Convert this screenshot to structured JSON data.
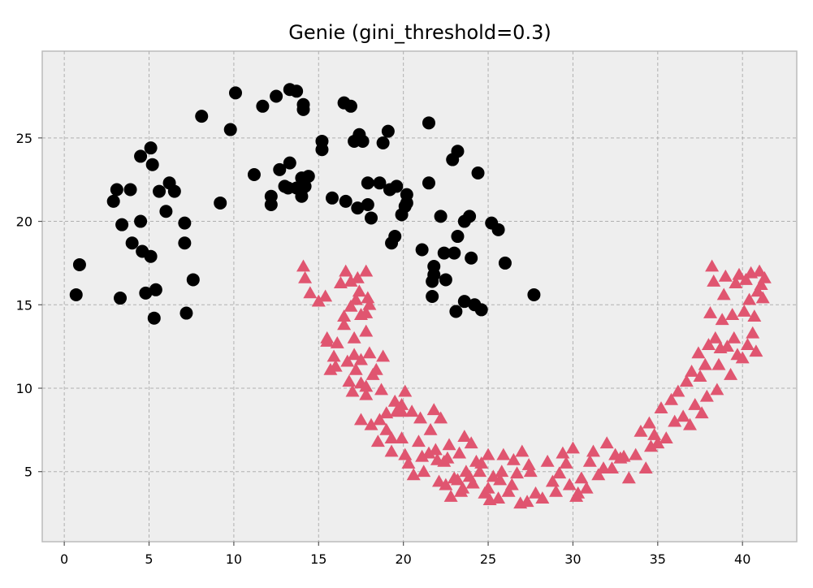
{
  "chart_data": {
    "type": "scatter",
    "title": "Genie (gini_threshold=0.3)",
    "xlabel": "",
    "ylabel": "",
    "xlim": [
      -1.3,
      43.2
    ],
    "ylim": [
      0.8,
      30.2
    ],
    "xticks": [
      0,
      5,
      10,
      15,
      20,
      25,
      30,
      35,
      40
    ],
    "yticks": [
      5,
      10,
      15,
      20,
      25
    ],
    "grid": true,
    "legend": "none",
    "background": "#eeeeee",
    "series": [
      {
        "marker": "circle",
        "color": "#000000",
        "points": [
          [
            0.7,
            15.6
          ],
          [
            0.9,
            17.4
          ],
          [
            2.9,
            21.2
          ],
          [
            3.1,
            21.9
          ],
          [
            3.3,
            15.4
          ],
          [
            3.4,
            19.8
          ],
          [
            3.9,
            21.9
          ],
          [
            4.0,
            18.7
          ],
          [
            4.5,
            23.9
          ],
          [
            4.5,
            20.0
          ],
          [
            4.6,
            18.2
          ],
          [
            4.8,
            15.7
          ],
          [
            5.1,
            24.4
          ],
          [
            5.1,
            17.9
          ],
          [
            5.2,
            23.4
          ],
          [
            5.3,
            14.2
          ],
          [
            5.4,
            15.9
          ],
          [
            5.6,
            21.8
          ],
          [
            6.0,
            20.6
          ],
          [
            6.2,
            22.3
          ],
          [
            6.5,
            21.8
          ],
          [
            7.1,
            19.9
          ],
          [
            7.1,
            18.7
          ],
          [
            7.2,
            14.5
          ],
          [
            7.6,
            16.5
          ],
          [
            8.1,
            26.3
          ],
          [
            9.2,
            21.1
          ],
          [
            9.8,
            25.5
          ],
          [
            10.1,
            27.7
          ],
          [
            11.2,
            22.8
          ],
          [
            11.7,
            26.9
          ],
          [
            12.2,
            21.5
          ],
          [
            12.2,
            21.0
          ],
          [
            12.5,
            27.5
          ],
          [
            12.7,
            23.1
          ],
          [
            13.0,
            22.1
          ],
          [
            13.2,
            22.0
          ],
          [
            13.3,
            23.5
          ],
          [
            13.3,
            27.9
          ],
          [
            13.7,
            27.8
          ],
          [
            13.7,
            22.0
          ],
          [
            14.0,
            22.6
          ],
          [
            14.0,
            21.9
          ],
          [
            14.0,
            21.5
          ],
          [
            14.1,
            27.0
          ],
          [
            14.1,
            26.7
          ],
          [
            14.2,
            22.1
          ],
          [
            14.4,
            22.7
          ],
          [
            15.2,
            24.8
          ],
          [
            15.2,
            24.3
          ],
          [
            15.8,
            21.4
          ],
          [
            16.5,
            27.1
          ],
          [
            16.6,
            21.2
          ],
          [
            16.9,
            26.9
          ],
          [
            17.1,
            24.8
          ],
          [
            17.3,
            20.8
          ],
          [
            17.4,
            25.2
          ],
          [
            17.6,
            24.8
          ],
          [
            17.9,
            22.3
          ],
          [
            17.9,
            21.0
          ],
          [
            18.1,
            20.2
          ],
          [
            18.6,
            22.3
          ],
          [
            18.8,
            24.7
          ],
          [
            19.1,
            25.4
          ],
          [
            19.2,
            21.9
          ],
          [
            19.3,
            18.7
          ],
          [
            19.5,
            19.1
          ],
          [
            19.6,
            22.1
          ],
          [
            19.9,
            20.4
          ],
          [
            20.1,
            20.9
          ],
          [
            20.2,
            21.6
          ],
          [
            20.2,
            21.1
          ],
          [
            21.1,
            18.3
          ],
          [
            21.5,
            22.3
          ],
          [
            21.5,
            25.9
          ],
          [
            21.7,
            15.5
          ],
          [
            21.7,
            16.4
          ],
          [
            21.8,
            17.3
          ],
          [
            21.8,
            16.8
          ],
          [
            22.2,
            20.3
          ],
          [
            22.4,
            18.1
          ],
          [
            22.5,
            16.5
          ],
          [
            22.9,
            23.7
          ],
          [
            23.0,
            18.1
          ],
          [
            23.1,
            14.6
          ],
          [
            23.2,
            24.2
          ],
          [
            23.2,
            19.1
          ],
          [
            23.6,
            15.2
          ],
          [
            23.6,
            20.0
          ],
          [
            23.9,
            20.3
          ],
          [
            24.0,
            17.8
          ],
          [
            24.2,
            15.0
          ],
          [
            24.4,
            22.9
          ],
          [
            24.6,
            14.7
          ],
          [
            25.2,
            19.9
          ],
          [
            25.6,
            19.5
          ],
          [
            26.0,
            17.5
          ],
          [
            27.7,
            15.6
          ]
        ]
      },
      {
        "marker": "triangle",
        "color": "#e05570",
        "points": [
          [
            14.1,
            17.3
          ],
          [
            14.2,
            16.6
          ],
          [
            14.5,
            15.7
          ],
          [
            15.0,
            15.2
          ],
          [
            15.4,
            15.5
          ],
          [
            15.5,
            13.0
          ],
          [
            15.5,
            12.8
          ],
          [
            15.7,
            11.1
          ],
          [
            15.9,
            11.9
          ],
          [
            16.0,
            11.3
          ],
          [
            16.1,
            12.7
          ],
          [
            16.3,
            16.3
          ],
          [
            16.5,
            13.8
          ],
          [
            16.5,
            14.3
          ],
          [
            16.6,
            17.0
          ],
          [
            16.7,
            11.6
          ],
          [
            16.8,
            10.4
          ],
          [
            16.9,
            16.4
          ],
          [
            16.9,
            14.9
          ],
          [
            17.0,
            9.8
          ],
          [
            17.1,
            13.0
          ],
          [
            17.1,
            12.0
          ],
          [
            17.2,
            15.3
          ],
          [
            17.2,
            11.1
          ],
          [
            17.3,
            16.6
          ],
          [
            17.4,
            15.8
          ],
          [
            17.5,
            14.4
          ],
          [
            17.5,
            11.7
          ],
          [
            17.5,
            8.1
          ],
          [
            17.5,
            10.3
          ],
          [
            17.8,
            17.0
          ],
          [
            17.8,
            14.5
          ],
          [
            17.8,
            13.4
          ],
          [
            17.8,
            10.1
          ],
          [
            17.8,
            9.6
          ],
          [
            17.9,
            15.4
          ],
          [
            18.0,
            15.0
          ],
          [
            18.0,
            12.1
          ],
          [
            18.1,
            7.8
          ],
          [
            18.2,
            10.8
          ],
          [
            18.4,
            11.1
          ],
          [
            18.5,
            6.8
          ],
          [
            18.6,
            8.1
          ],
          [
            18.7,
            9.9
          ],
          [
            18.8,
            11.9
          ],
          [
            19.0,
            7.5
          ],
          [
            19.0,
            8.5
          ],
          [
            19.3,
            7.0
          ],
          [
            19.3,
            6.2
          ],
          [
            19.5,
            9.2
          ],
          [
            19.6,
            8.6
          ],
          [
            19.9,
            9.0
          ],
          [
            19.9,
            8.6
          ],
          [
            19.9,
            7.0
          ],
          [
            20.1,
            9.8
          ],
          [
            20.1,
            6.0
          ],
          [
            20.3,
            5.5
          ],
          [
            20.5,
            8.6
          ],
          [
            20.6,
            4.8
          ],
          [
            20.9,
            6.8
          ],
          [
            21.0,
            8.2
          ],
          [
            21.1,
            5.9
          ],
          [
            21.2,
            5.0
          ],
          [
            21.5,
            6.1
          ],
          [
            21.6,
            7.5
          ],
          [
            21.8,
            8.7
          ],
          [
            21.9,
            6.3
          ],
          [
            22.0,
            5.7
          ],
          [
            22.1,
            4.4
          ],
          [
            22.2,
            8.2
          ],
          [
            22.4,
            5.6
          ],
          [
            22.5,
            4.2
          ],
          [
            22.6,
            5.8
          ],
          [
            22.7,
            6.6
          ],
          [
            22.8,
            3.5
          ],
          [
            23.0,
            4.6
          ],
          [
            23.2,
            4.5
          ],
          [
            23.3,
            6.1
          ],
          [
            23.4,
            3.8
          ],
          [
            23.5,
            4.0
          ],
          [
            23.6,
            7.1
          ],
          [
            23.7,
            5.0
          ],
          [
            23.9,
            4.7
          ],
          [
            24.0,
            6.7
          ],
          [
            24.1,
            4.3
          ],
          [
            24.3,
            5.6
          ],
          [
            24.5,
            5.0
          ],
          [
            24.6,
            5.5
          ],
          [
            24.8,
            3.7
          ],
          [
            25.0,
            4.0
          ],
          [
            25.0,
            6.0
          ],
          [
            25.1,
            3.3
          ],
          [
            25.3,
            4.7
          ],
          [
            25.6,
            3.4
          ],
          [
            25.7,
            4.5
          ],
          [
            25.8,
            5.0
          ],
          [
            25.9,
            6.0
          ],
          [
            26.2,
            3.8
          ],
          [
            26.4,
            4.2
          ],
          [
            26.5,
            5.7
          ],
          [
            26.7,
            4.9
          ],
          [
            26.9,
            3.1
          ],
          [
            27.0,
            6.2
          ],
          [
            27.3,
            3.2
          ],
          [
            27.4,
            5.4
          ],
          [
            27.5,
            5.0
          ],
          [
            27.8,
            3.7
          ],
          [
            28.2,
            3.4
          ],
          [
            28.5,
            5.6
          ],
          [
            28.8,
            4.4
          ],
          [
            29.0,
            3.8
          ],
          [
            29.2,
            4.9
          ],
          [
            29.4,
            6.1
          ],
          [
            29.6,
            5.5
          ],
          [
            29.8,
            4.2
          ],
          [
            30.0,
            6.4
          ],
          [
            30.2,
            3.5
          ],
          [
            30.3,
            3.7
          ],
          [
            30.5,
            4.6
          ],
          [
            30.8,
            4.0
          ],
          [
            31.0,
            5.6
          ],
          [
            31.2,
            6.2
          ],
          [
            31.5,
            4.8
          ],
          [
            31.8,
            5.2
          ],
          [
            32.0,
            6.7
          ],
          [
            32.3,
            5.2
          ],
          [
            32.5,
            6.0
          ],
          [
            32.8,
            5.8
          ],
          [
            33.0,
            5.9
          ],
          [
            33.3,
            4.6
          ],
          [
            33.7,
            6.0
          ],
          [
            34.0,
            7.4
          ],
          [
            34.3,
            5.2
          ],
          [
            34.5,
            7.9
          ],
          [
            34.6,
            6.5
          ],
          [
            34.8,
            7.2
          ],
          [
            35.0,
            6.7
          ],
          [
            35.2,
            8.8
          ],
          [
            35.5,
            7.0
          ],
          [
            35.8,
            9.3
          ],
          [
            36.0,
            8.0
          ],
          [
            36.2,
            9.8
          ],
          [
            36.5,
            8.3
          ],
          [
            36.7,
            10.4
          ],
          [
            36.9,
            7.8
          ],
          [
            37.0,
            11.0
          ],
          [
            37.2,
            9.0
          ],
          [
            37.4,
            12.1
          ],
          [
            37.5,
            10.7
          ],
          [
            37.6,
            8.5
          ],
          [
            37.8,
            11.4
          ],
          [
            37.9,
            9.5
          ],
          [
            38.0,
            12.6
          ],
          [
            38.1,
            14.5
          ],
          [
            38.2,
            17.3
          ],
          [
            38.3,
            16.4
          ],
          [
            38.4,
            13.0
          ],
          [
            38.5,
            9.9
          ],
          [
            38.6,
            11.4
          ],
          [
            38.7,
            12.4
          ],
          [
            38.8,
            14.1
          ],
          [
            38.9,
            15.6
          ],
          [
            39.0,
            16.7
          ],
          [
            39.1,
            12.5
          ],
          [
            39.3,
            10.8
          ],
          [
            39.4,
            14.4
          ],
          [
            39.5,
            13.0
          ],
          [
            39.6,
            16.3
          ],
          [
            39.7,
            12.0
          ],
          [
            39.8,
            16.8
          ],
          [
            40.0,
            11.8
          ],
          [
            40.1,
            14.6
          ],
          [
            40.2,
            16.5
          ],
          [
            40.3,
            12.6
          ],
          [
            40.4,
            15.3
          ],
          [
            40.5,
            16.9
          ],
          [
            40.6,
            13.3
          ],
          [
            40.7,
            14.3
          ],
          [
            40.8,
            12.2
          ],
          [
            40.9,
            15.8
          ],
          [
            41.0,
            17.0
          ],
          [
            41.1,
            16.2
          ],
          [
            41.2,
            15.4
          ],
          [
            41.3,
            16.6
          ]
        ]
      }
    ]
  }
}
